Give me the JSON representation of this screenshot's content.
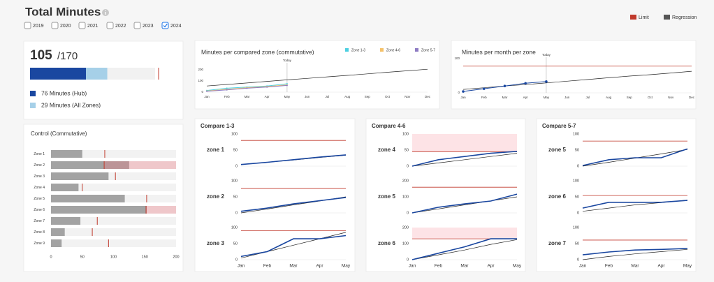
{
  "header": {
    "title": "Total Minutes",
    "years": [
      {
        "label": "2019",
        "checked": false
      },
      {
        "label": "2020",
        "checked": false
      },
      {
        "label": "2021",
        "checked": false
      },
      {
        "label": "2022",
        "checked": false
      },
      {
        "label": "2023",
        "checked": false
      },
      {
        "label": "2024",
        "checked": true
      }
    ]
  },
  "legend": {
    "items": [
      {
        "name": "Limit",
        "color": "#c0392b"
      },
      {
        "name": "Regression",
        "color": "#555555"
      }
    ]
  },
  "summary": {
    "value": 105,
    "total": {
      "value": 170,
      "label": "/170"
    },
    "items": [
      {
        "label": "76 Minutes (Hub)",
        "value": 76,
        "color": "#1a47a0"
      },
      {
        "label": "29 Minutes (All Zones)",
        "value": 29,
        "color": "#a6d0e8"
      }
    ]
  },
  "chart_data": [
    {
      "type": "hbar",
      "title": "Control (Commutative)",
      "categories": [
        "Zone 1",
        "Zone 2",
        "Zone 3",
        "Zone 4",
        "Zone 5",
        "Zone 6",
        "Zone 7",
        "Zone 8",
        "Zone 9"
      ],
      "values": [
        50,
        125,
        92,
        44,
        118,
        153,
        47,
        22,
        17
      ],
      "limits": [
        86,
        85,
        103,
        50,
        153,
        152,
        74,
        66,
        92
      ],
      "color": "#a3a3a3",
      "xlim": [
        0,
        200
      ],
      "xticks": [
        0,
        50,
        100,
        150,
        200
      ]
    },
    {
      "type": "line",
      "title": "Minutes per compared zone (commutative)",
      "categories": [
        "Jan",
        "Feb",
        "Mar",
        "Apr",
        "May",
        "Jun",
        "Jul",
        "Aug",
        "Sep",
        "Oct",
        "Nov",
        "Dec"
      ],
      "series": [
        {
          "name": "Zone 1-3",
          "color": "#4dd0e1",
          "values": [
            15,
            35,
            45,
            55,
            75,
            null,
            null,
            null,
            null,
            null,
            null,
            null
          ]
        },
        {
          "name": "Zone 4-6",
          "color": "#f5c26b",
          "values": [
            10,
            25,
            40,
            50,
            65,
            null,
            null,
            null,
            null,
            null,
            null,
            null
          ]
        },
        {
          "name": "Zone 5-7",
          "color": "#8e7cc3",
          "values": [
            8,
            20,
            35,
            45,
            60,
            null,
            null,
            null,
            null,
            null,
            null,
            null
          ]
        }
      ],
      "regression": [
        55,
        69,
        82,
        96,
        110,
        123,
        137,
        150,
        164,
        178,
        191,
        205
      ],
      "annotation": {
        "text": "Today",
        "x": "May"
      },
      "ylim": [
        0,
        250
      ],
      "yticks": [
        0,
        100,
        200
      ]
    },
    {
      "type": "line",
      "title": "Minutes per month per zone",
      "categories": [
        "Jan",
        "Feb",
        "Mar",
        "Apr",
        "May",
        "Jun",
        "Jul",
        "Aug",
        "Sep",
        "Oct",
        "Nov",
        "Dec"
      ],
      "values": [
        4,
        12,
        20,
        28,
        33,
        null,
        null,
        null,
        null,
        null,
        null,
        null
      ],
      "color": "#1a47a0",
      "regression": [
        10,
        15,
        20,
        24,
        29,
        34,
        39,
        44,
        49,
        53,
        58,
        63
      ],
      "limit": 78,
      "annotation": {
        "text": "Today",
        "x": "May"
      },
      "ylim": [
        0,
        100
      ],
      "yticks": [
        0,
        100
      ]
    },
    {
      "type": "multiples",
      "title": "Compare 1-3",
      "categories": [
        "Jan",
        "Feb",
        "Mar",
        "Apr",
        "May"
      ],
      "panels": [
        {
          "label": "zone 1",
          "values": [
            5,
            12,
            20,
            28,
            35
          ],
          "regression": [
            5,
            12,
            19,
            27,
            34
          ],
          "limit": 80,
          "ylim": [
            0,
            100
          ],
          "yticks": [
            0,
            50,
            100
          ]
        },
        {
          "label": "zone 2",
          "values": [
            5,
            15,
            28,
            38,
            48
          ],
          "regression": [
            0,
            12,
            25,
            37,
            50
          ],
          "limit": 76,
          "ylim": [
            0,
            100
          ],
          "yticks": [
            0,
            50,
            100
          ]
        },
        {
          "label": "zone 3",
          "values": [
            10,
            25,
            65,
            65,
            75
          ],
          "regression": [
            5,
            25,
            45,
            65,
            85
          ],
          "limit": 90,
          "ylim": [
            0,
            100
          ],
          "yticks": [
            0,
            50,
            100
          ]
        }
      ]
    },
    {
      "type": "multiples",
      "title": "Compare 4-6",
      "categories": [
        "Jan",
        "Feb",
        "Mar",
        "Apr",
        "May"
      ],
      "panels": [
        {
          "label": "zone 4",
          "values": [
            0,
            20,
            30,
            40,
            46
          ],
          "regression": [
            0,
            10,
            20,
            30,
            40
          ],
          "limit": 45,
          "ylim": [
            0,
            100
          ],
          "yticks": [
            0,
            50,
            100
          ]
        },
        {
          "label": "zone 5",
          "values": [
            0,
            35,
            56,
            74,
            117
          ],
          "regression": [
            0,
            25,
            50,
            75,
            100
          ],
          "limit": 160,
          "ylim": [
            0,
            200
          ],
          "yticks": [
            0,
            100,
            200
          ]
        },
        {
          "label": "zone 6",
          "values": [
            0,
            40,
            80,
            130,
            130
          ],
          "regression": [
            0,
            30,
            60,
            95,
            125
          ],
          "limit": 130,
          "ylim": [
            0,
            200
          ],
          "yticks": [
            0,
            100,
            200
          ]
        }
      ]
    },
    {
      "type": "multiples",
      "title": "Compare 5-7",
      "categories": [
        "Jan",
        "Feb",
        "Mar",
        "Apr",
        "May"
      ],
      "panels": [
        {
          "label": "zone 5",
          "values": [
            2,
            20,
            26,
            26,
            54
          ],
          "regression": [
            0,
            12,
            25,
            38,
            52
          ],
          "limit": 78,
          "ylim": [
            0,
            100
          ],
          "yticks": [
            0,
            50,
            100
          ]
        },
        {
          "label": "zone 6",
          "values": [
            15,
            33,
            33,
            33,
            39
          ],
          "regression": [
            5,
            15,
            25,
            32,
            40
          ],
          "limit": 54,
          "ylim": [
            0,
            100
          ],
          "yticks": [
            0,
            50,
            100
          ]
        },
        {
          "label": "zone 7",
          "values": [
            15,
            24,
            30,
            32,
            35
          ],
          "regression": [
            0,
            10,
            18,
            25,
            32
          ],
          "limit": 61,
          "ylim": [
            0,
            100
          ],
          "yticks": [
            0,
            50,
            100
          ]
        }
      ]
    }
  ]
}
